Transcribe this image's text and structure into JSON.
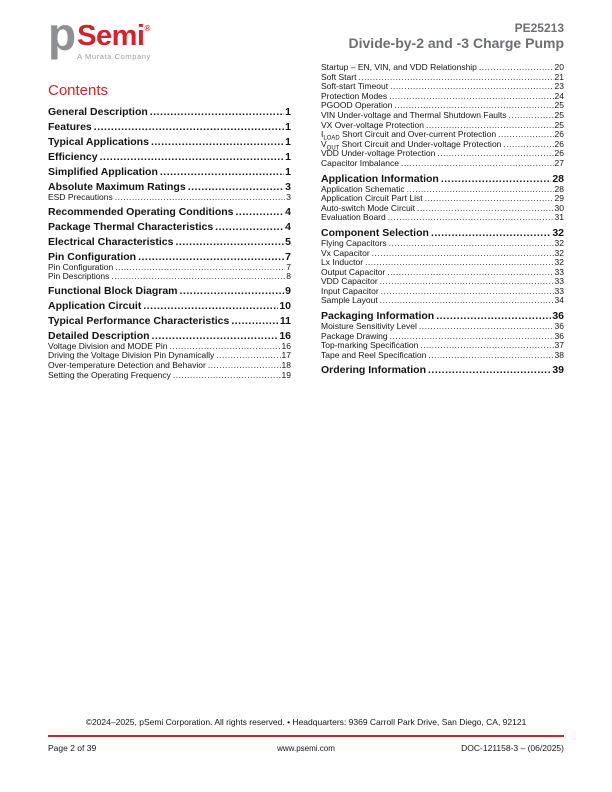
{
  "colors": {
    "brand_red": "#D2232A",
    "title_gray": "#6D6E71",
    "logo_gray": "#8E9093",
    "tagline_gray": "#9B9DA0"
  },
  "header": {
    "logo_p": "p",
    "logo_semi": "Semi",
    "registered_mark": "®",
    "tagline": "A Murata Company",
    "part_number": "PE25213",
    "subtitle": "Divide-by-2 and -3 Charge Pump"
  },
  "contents_title": "Contents",
  "toc_left": [
    {
      "level": "lvl1",
      "label": "General Description",
      "page": "1"
    },
    {
      "level": "lvl1",
      "label": "Features",
      "page": "1"
    },
    {
      "level": "lvl1",
      "label": "Typical Applications",
      "page": "1"
    },
    {
      "level": "lvl1",
      "label": "Efficiency",
      "page": "1"
    },
    {
      "level": "lvl1",
      "label": "Simplified Application",
      "page": "1"
    },
    {
      "level": "lvl1",
      "label": "Absolute Maximum Ratings",
      "page": "3"
    },
    {
      "level": "lvl2",
      "label": "ESD Precautions",
      "page": "3"
    },
    {
      "level": "lvl1",
      "label": "Recommended Operating Conditions",
      "page": "4"
    },
    {
      "level": "lvl1",
      "label": "Package Thermal Characteristics",
      "page": "4"
    },
    {
      "level": "lvl1",
      "label": "Electrical Characteristics",
      "page": "5"
    },
    {
      "level": "lvl1",
      "label": "Pin Configuration",
      "page": "7"
    },
    {
      "level": "lvl2",
      "label": "Pin Configuration",
      "page": "7"
    },
    {
      "level": "lvl2",
      "label": "Pin Descriptions",
      "page": "8"
    },
    {
      "level": "lvl1",
      "label": "Functional Block Diagram",
      "page": "9"
    },
    {
      "level": "lvl1",
      "label": "Application Circuit",
      "page": "10"
    },
    {
      "level": "lvl1",
      "label": "Typical Performance Characteristics",
      "page": "11"
    },
    {
      "level": "lvl1",
      "label": "Detailed Description",
      "page": "16"
    },
    {
      "level": "lvl2",
      "label": "Voltage Division and MODE Pin",
      "page": "16"
    },
    {
      "level": "lvl2",
      "label": "Driving the Voltage Division Pin Dynamically",
      "page": "17"
    },
    {
      "level": "lvl2",
      "label": "Over-temperature Detection and Behavior",
      "page": "18"
    },
    {
      "level": "lvl2",
      "label": "Setting the Operating Frequency",
      "page": "19"
    }
  ],
  "toc_right": [
    {
      "level": "lvl2",
      "label": "Startup – EN, VIN, and VDD Relationship",
      "page": "20"
    },
    {
      "level": "lvl2",
      "label": "Soft Start",
      "page": "21"
    },
    {
      "level": "lvl2",
      "label": "Soft-start Timeout",
      "page": "23"
    },
    {
      "level": "lvl2",
      "label": "Protection Modes",
      "page": "24"
    },
    {
      "level": "lvl2",
      "label": "PGOOD Operation",
      "page": "25"
    },
    {
      "level": "lvl2",
      "label": "VIN Under-voltage and Thermal Shutdown Faults",
      "page": "25"
    },
    {
      "level": "lvl2",
      "label": "VX Over-voltage Protection",
      "page": "25"
    },
    {
      "level": "lvl2",
      "pre": "I",
      "subscript": "LOAD",
      "label": " Short Circuit and Over-current Protection",
      "page": "26"
    },
    {
      "level": "lvl2",
      "pre": "V",
      "subscript": "OUT",
      "label": " Short Circuit and Under-voltage Protection",
      "page": "26"
    },
    {
      "level": "lvl2",
      "label": "VDD Under-voltage Protection",
      "page": "26"
    },
    {
      "level": "lvl2",
      "label": "Capacitor Imbalance",
      "page": "27"
    },
    {
      "level": "lvl1",
      "label": "Application Information",
      "page": "28"
    },
    {
      "level": "lvl2",
      "label": "Application Schematic",
      "page": "28"
    },
    {
      "level": "lvl2",
      "label": "Application Circuit Part List",
      "page": "29"
    },
    {
      "level": "lvl2",
      "label": "Auto-switch Mode Circuit",
      "page": "30"
    },
    {
      "level": "lvl2",
      "label": "Evaluation Board",
      "page": "31"
    },
    {
      "level": "lvl1",
      "label": "Component Selection",
      "page": "32"
    },
    {
      "level": "lvl2",
      "label": "Flying Capacitors",
      "page": "32"
    },
    {
      "level": "lvl2",
      "label": "Vx Capacitor",
      "page": "32"
    },
    {
      "level": "lvl2",
      "label": "Lx Inductor",
      "page": "32"
    },
    {
      "level": "lvl2",
      "label": "Output Capacitor",
      "page": "33"
    },
    {
      "level": "lvl2",
      "label": "VDD Capacitor",
      "page": "33"
    },
    {
      "level": "lvl2",
      "label": "Input Capacitor",
      "page": "33"
    },
    {
      "level": "lvl2",
      "label": "Sample Layout",
      "page": "34"
    },
    {
      "level": "lvl1",
      "label": "Packaging Information",
      "page": "36"
    },
    {
      "level": "lvl2",
      "label": "Moisture Sensitivity Level",
      "page": "36"
    },
    {
      "level": "lvl2",
      "label": "Package Drawing",
      "page": "36"
    },
    {
      "level": "lvl2",
      "label": "Top-marking Specification",
      "page": "37"
    },
    {
      "level": "lvl2",
      "label": "Tape and Reel Specification",
      "page": "38"
    },
    {
      "level": "lvl1",
      "label": "Ordering Information",
      "page": "39"
    }
  ],
  "footer": {
    "copyright": "©2024–2025, pSemi Corporation. All rights reserved. • Headquarters: 9369 Carroll Park Drive, San Diego, CA, 92121",
    "page_info": "Page 2 of 39",
    "website": "www.psemi.com",
    "doc_number": "DOC-121158-3 – (06/2025)"
  }
}
